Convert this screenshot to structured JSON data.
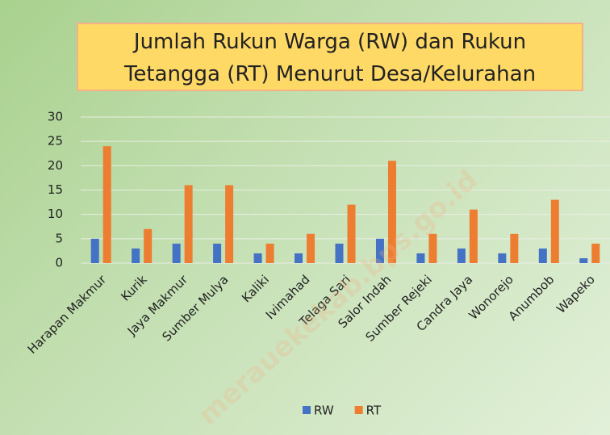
{
  "chart_data": {
    "type": "bar",
    "title": "Jumlah Rukun Warga (RW) dan Rukun Tetangga (RT) Menurut Desa/Kelurahan",
    "watermark": "merauekekab.bps.go.id",
    "categories": [
      "Harapan Makmur",
      "Kurik",
      "Jaya Makmur",
      "Sumber Mulya",
      "Kaliki",
      "Ivimahad",
      "Telaga Sari",
      "Salor Indah",
      "Sumber Rejeki",
      "Candra Jaya",
      "Wonorejo",
      "Anumbob",
      "Wapeko"
    ],
    "series": [
      {
        "name": "RW",
        "color": "#4472c4",
        "values": [
          5,
          3,
          4,
          4,
          2,
          2,
          4,
          5,
          2,
          3,
          2,
          3,
          1
        ]
      },
      {
        "name": "RT",
        "color": "#ed7d31",
        "values": [
          24,
          7,
          16,
          16,
          4,
          6,
          12,
          21,
          6,
          11,
          6,
          13,
          4
        ]
      }
    ],
    "ylim": [
      0,
      30
    ],
    "yticks": [
      0,
      5,
      10,
      15,
      20,
      25,
      30
    ],
    "grid": true,
    "legend": "bottom"
  }
}
